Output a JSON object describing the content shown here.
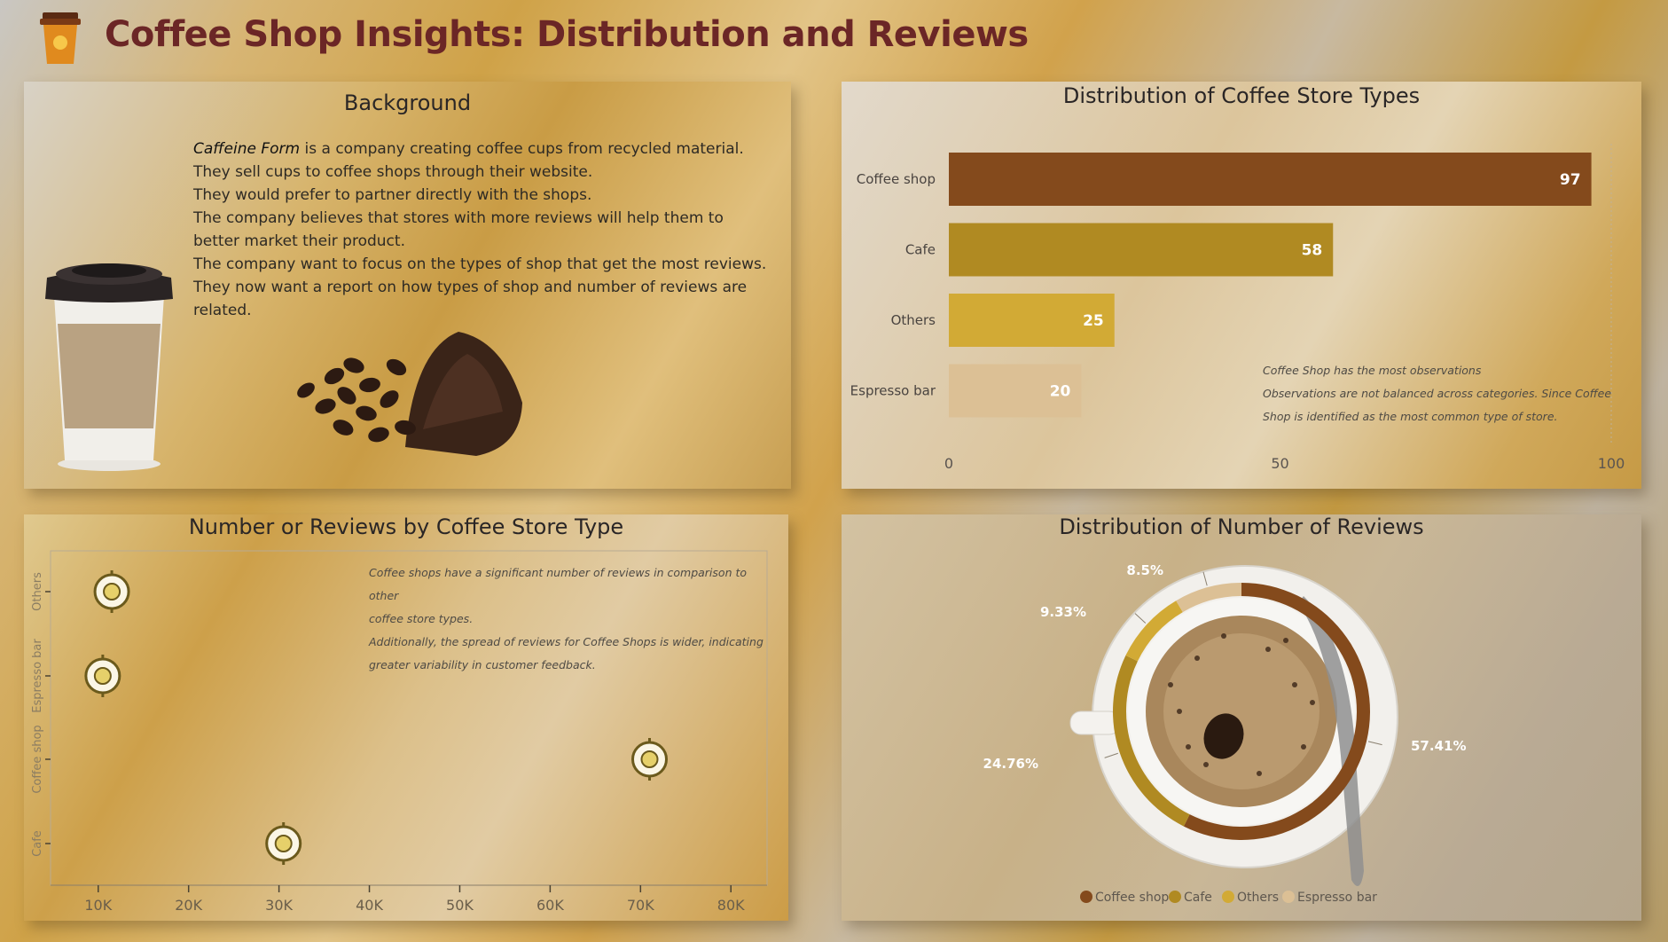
{
  "header": {
    "title": "Coffee Shop Insights: Distribution and Reviews",
    "logo_icon": "coffee-cup-icon"
  },
  "background": {
    "title": "Background",
    "lead": "Caffeine Form",
    "lead_rest": " is a company creating coffee cups from recycled material.",
    "lines": [
      "They sell cups to coffee shops through their website.",
      "They would prefer to partner directly with the shops.",
      "The company believes that stores with more reviews will help them to better market their product.",
      "The company want to focus on the types of shop that get the most reviews.",
      "They now want a report on how types of shop and number of reviews are related."
    ]
  },
  "colors": {
    "coffee_shop": "#844a1c",
    "cafe": "#b08a22",
    "others": "#d2aa35",
    "espresso_bar": "#dcc095",
    "title": "#6b2626"
  },
  "chart_data": [
    {
      "type": "bar",
      "orientation": "horizontal",
      "title": "Distribution of Coffee Store Types",
      "categories": [
        "Coffee shop",
        "Cafe",
        "Others",
        "Espresso bar"
      ],
      "values": [
        97,
        58,
        25,
        20
      ],
      "x_ticks": [
        "0",
        "50",
        "100"
      ],
      "xlim": [
        0,
        100
      ],
      "note": [
        "Coffee Shop has the most observations",
        "Observations are not balanced across categories. Since Coffee",
        "Shop is identified as the most common type of store."
      ]
    },
    {
      "type": "scatter",
      "title": "Number or Reviews by Coffee Store Type",
      "categories": [
        "Others",
        "Espresso bar",
        "Coffee shop",
        "Cafe"
      ],
      "x_ticks": [
        "10K",
        "20K",
        "30K",
        "40K",
        "50K",
        "60K",
        "70K",
        "80K"
      ],
      "xlim": [
        6000,
        84000
      ],
      "points": [
        {
          "category": "Others",
          "x": 11500
        },
        {
          "category": "Espresso bar",
          "x": 10500
        },
        {
          "category": "Coffee shop",
          "x": 71000
        },
        {
          "category": "Cafe",
          "x": 30500
        }
      ],
      "note": [
        "Coffee shops have a significant number of reviews in comparison to other",
        "coffee store types.",
        "Additionally, the spread of reviews for Coffee Shops is wider, indicating",
        "greater variability in customer feedback."
      ]
    },
    {
      "type": "pie",
      "style": "donut",
      "title": "Distribution of Number of Reviews",
      "slices": [
        {
          "name": "Coffee shop",
          "value": 57.41,
          "label": "57.41%"
        },
        {
          "name": "Cafe",
          "value": 24.76,
          "label": "24.76%"
        },
        {
          "name": "Others",
          "value": 9.33,
          "label": "9.33%"
        },
        {
          "name": "Espresso bar",
          "value": 8.5,
          "label": "8.5%"
        }
      ],
      "legend": [
        "Coffee shop",
        "Cafe",
        "Others",
        "Espresso bar"
      ],
      "legend_position": "bottom"
    }
  ]
}
